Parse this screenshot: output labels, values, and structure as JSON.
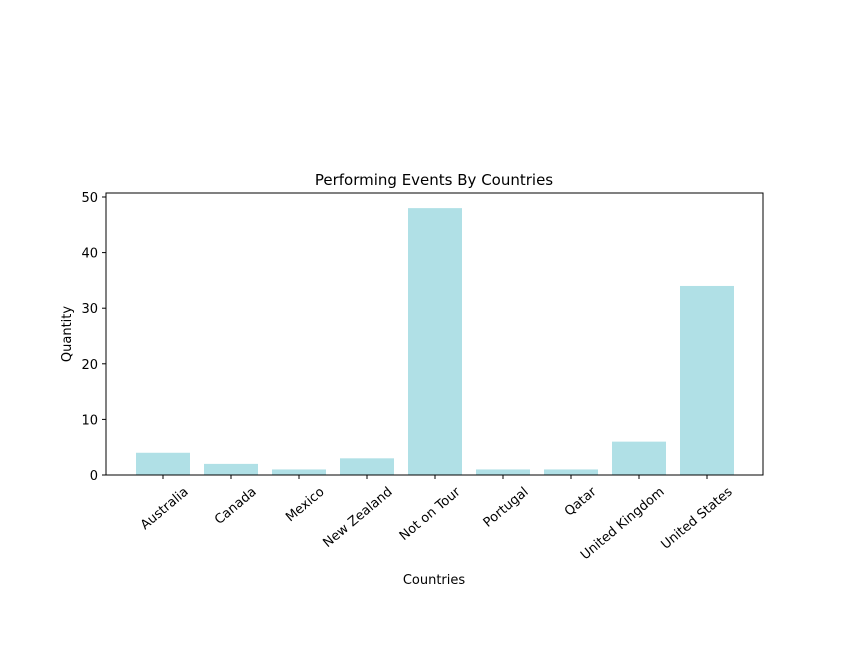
{
  "chart_data": {
    "type": "bar",
    "title": "Performing Events By Countries",
    "xlabel": "Countries",
    "ylabel": "Quantity",
    "categories": [
      "Australia",
      "Canada",
      "Mexico",
      "New Zealand",
      "Not on Tour",
      "Portugal",
      "Qatar",
      "United Kingdom",
      "United States"
    ],
    "values": [
      4,
      2,
      1,
      3,
      48,
      1,
      1,
      6,
      34
    ],
    "ylim": [
      0,
      50
    ],
    "yticks": [
      0,
      10,
      20,
      30,
      40,
      50
    ],
    "grid": false,
    "bar_color": "#b0e0e6"
  }
}
